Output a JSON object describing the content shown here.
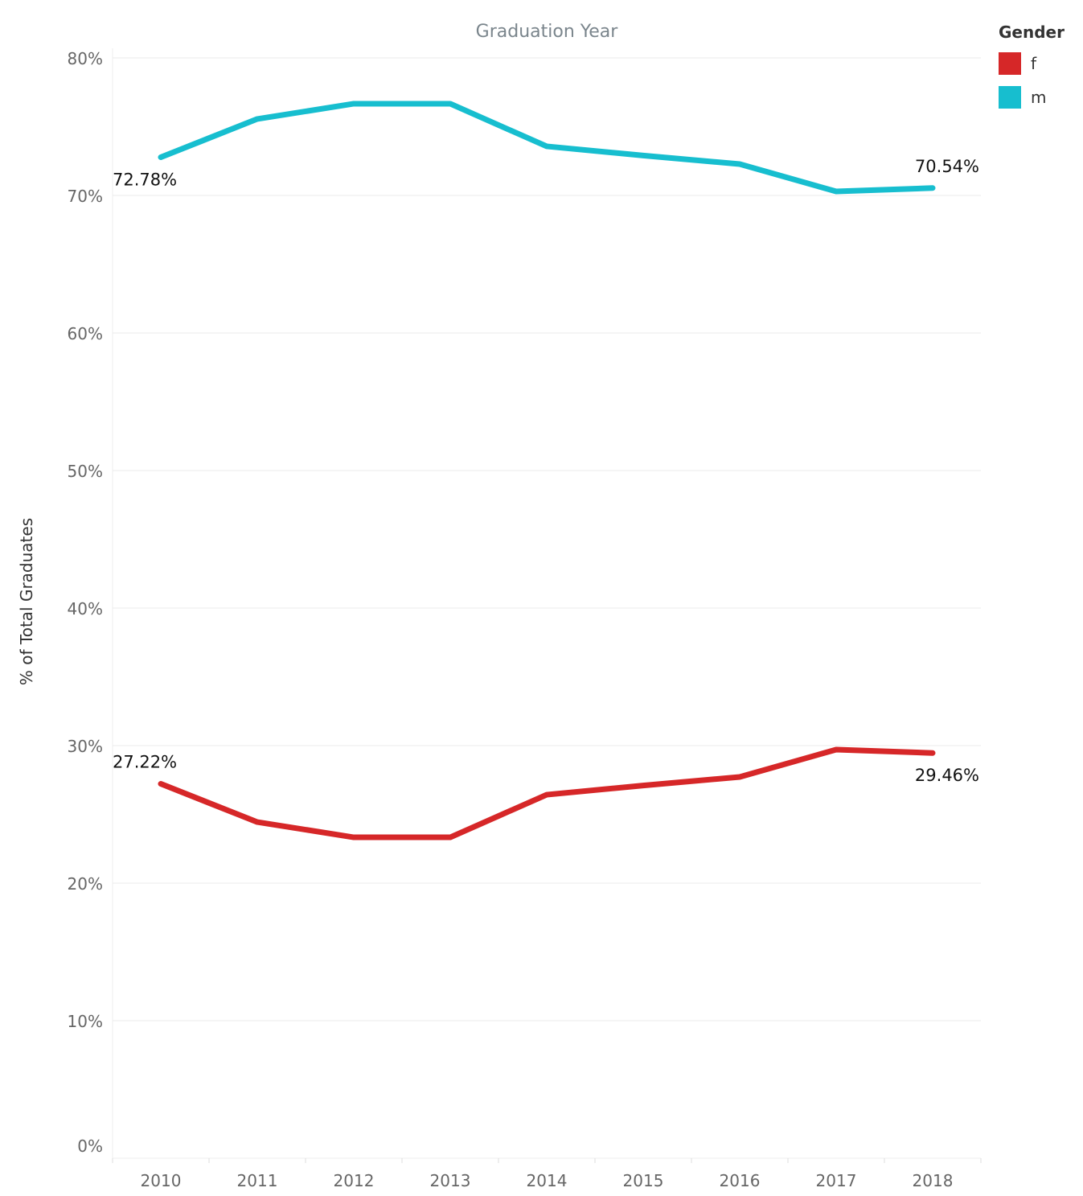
{
  "chart_data": {
    "type": "line",
    "title": "Graduation Year",
    "xlabel": "",
    "ylabel": "% of Total Graduates",
    "x": [
      "2010",
      "2011",
      "2012",
      "2013",
      "2014",
      "2015",
      "2016",
      "2017",
      "2018"
    ],
    "y_ticks": [
      "0%",
      "10%",
      "20%",
      "30%",
      "40%",
      "50%",
      "60%",
      "70%",
      "80%"
    ],
    "ylim": [
      0,
      80
    ],
    "grid": true,
    "legend": {
      "title": "Gender",
      "placement": "top-right"
    },
    "series": [
      {
        "name": "f",
        "color": "#d62728",
        "values": [
          27.22,
          24.44,
          23.33,
          23.33,
          26.43,
          27.1,
          27.72,
          29.71,
          29.46
        ],
        "labels": {
          "first": "27.22%",
          "last": "29.46%"
        }
      },
      {
        "name": "m",
        "color": "#17becf",
        "values": [
          72.78,
          75.56,
          76.67,
          76.67,
          73.57,
          72.9,
          72.28,
          70.29,
          70.54
        ],
        "labels": {
          "first": "72.78%",
          "last": "70.54%"
        }
      }
    ]
  }
}
